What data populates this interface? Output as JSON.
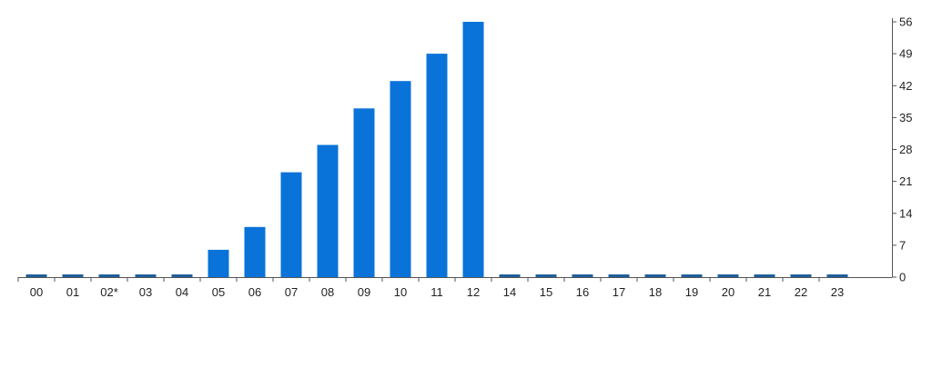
{
  "chart_data": {
    "type": "bar",
    "title": "",
    "xlabel": "",
    "ylabel": "",
    "categories": [
      "00",
      "01",
      "02*",
      "03",
      "04",
      "05",
      "06",
      "07",
      "08",
      "09",
      "10",
      "11",
      "12",
      "14",
      "15",
      "16",
      "17",
      "18",
      "19",
      "20",
      "21",
      "22",
      "23"
    ],
    "values": [
      0,
      0,
      0,
      0,
      0,
      6,
      11,
      23,
      29,
      37,
      43,
      49,
      56,
      0,
      0,
      0,
      0,
      0,
      0,
      0,
      0,
      0,
      0
    ],
    "ylim": [
      0,
      56
    ],
    "y_ticks": [
      0,
      7,
      14,
      21,
      28,
      35,
      42,
      49,
      56
    ],
    "y_axis_side": "right",
    "grid": false,
    "legend": "none"
  },
  "colors": {
    "bar": "#0a73d9",
    "zero_bar": "#1f5f9c",
    "axis": "#555555",
    "text": "#222222"
  }
}
